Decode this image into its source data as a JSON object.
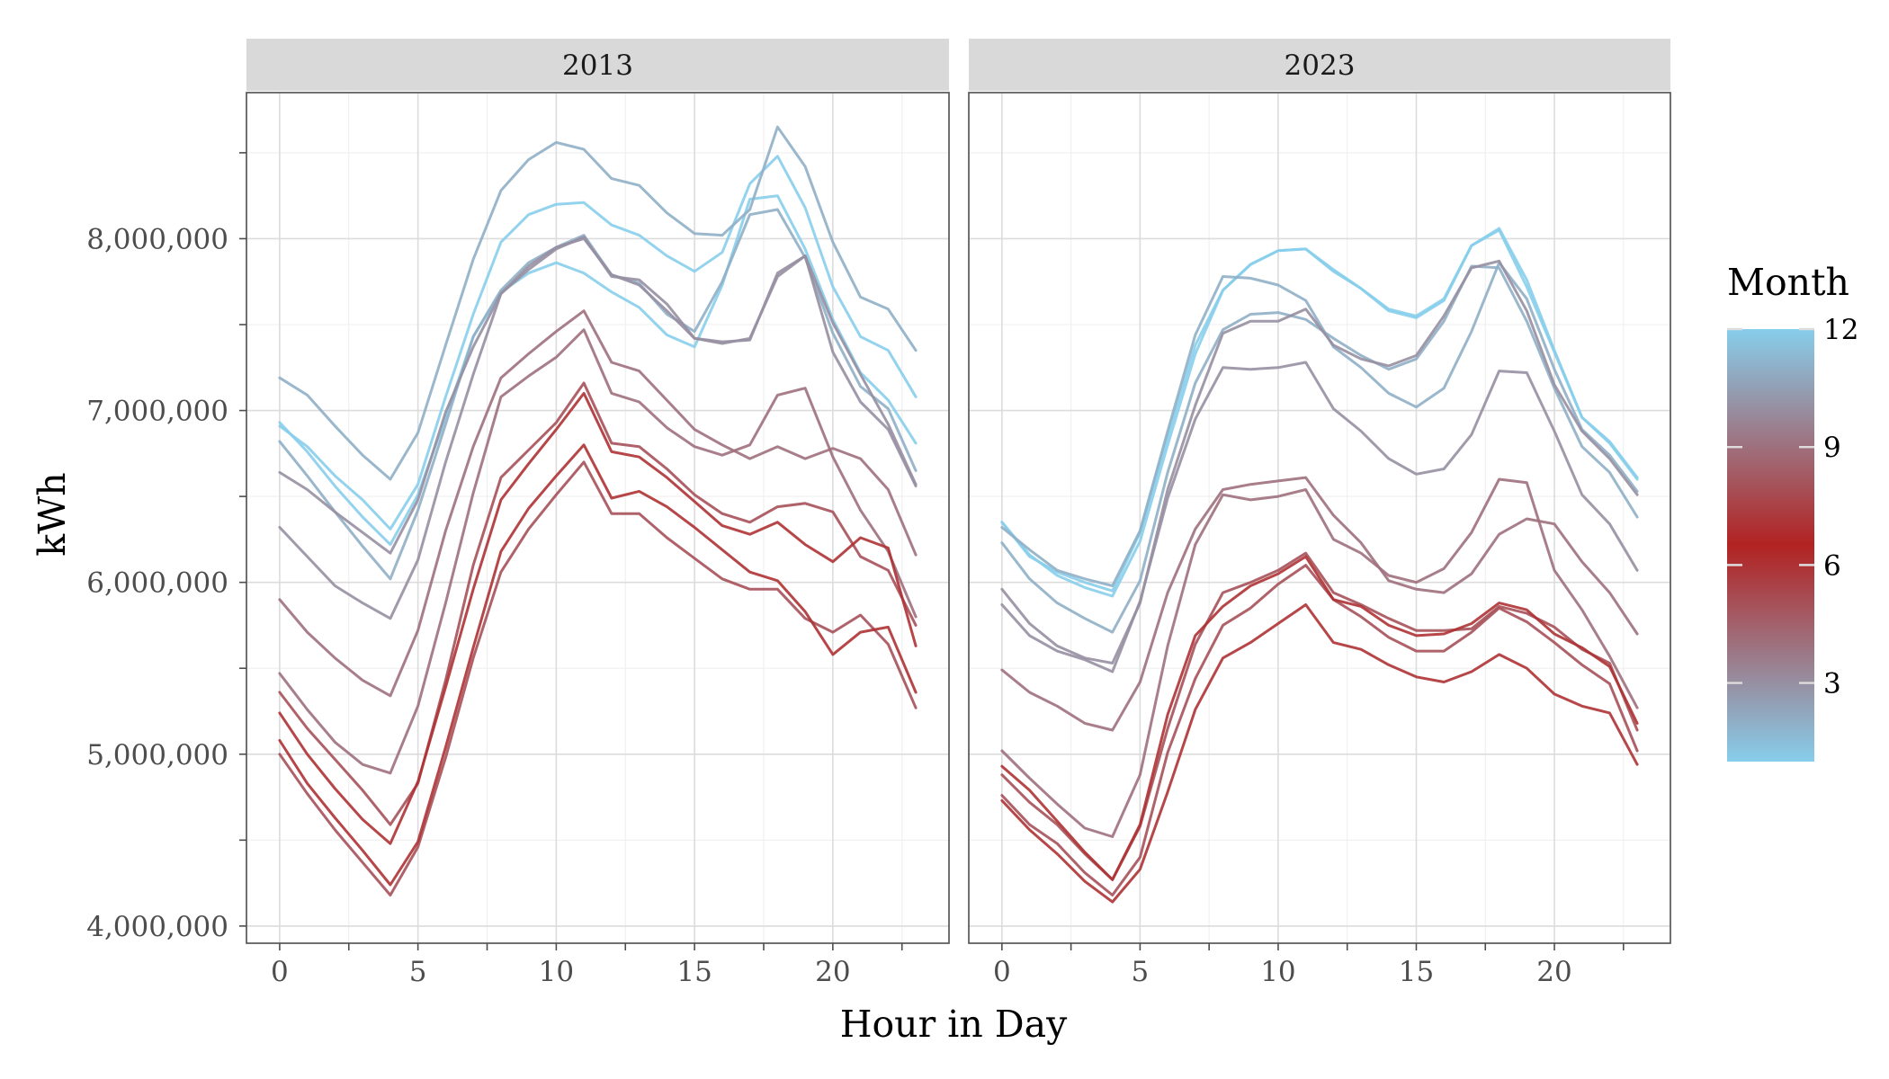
{
  "chart_data": {
    "type": "line",
    "xlabel": "Hour in Day",
    "ylabel": "kWh",
    "xlim": [
      -1.2,
      24.2
    ],
    "ylim": [
      3900000,
      8850000
    ],
    "x_ticks": [
      0,
      5,
      10,
      15,
      20
    ],
    "x_tick_labels": [
      "0",
      "5",
      "10",
      "15",
      "20"
    ],
    "y_ticks": [
      4000000,
      5000000,
      6000000,
      7000000,
      8000000
    ],
    "y_tick_labels": [
      "4,000,000",
      "5,000,000",
      "6,000,000",
      "7,000,000",
      "8,000,000"
    ],
    "grid": true,
    "legend": {
      "title": "Month",
      "placement": "right",
      "labels": [
        "3",
        "6",
        "9",
        "12"
      ],
      "breaks": [
        3,
        6,
        9,
        12
      ],
      "range": [
        1,
        12
      ],
      "colors": {
        "low": "#87CEEB",
        "mid": "#B22222",
        "high": "#87CEEB",
        "midpoint": 6.5
      }
    },
    "hours": [
      0,
      1,
      2,
      3,
      4,
      5,
      6,
      7,
      8,
      9,
      10,
      11,
      12,
      13,
      14,
      15,
      16,
      17,
      18,
      19,
      20,
      21,
      22,
      23
    ],
    "facets": [
      {
        "strip_label": "2013",
        "series": [
          {
            "month": 1,
            "values": [
              6930000,
              6760000,
              6560000,
              6380000,
              6220000,
              6510000,
              6960000,
              7430000,
              7690000,
              7800000,
              7860000,
              7800000,
              7690000,
              7600000,
              7440000,
              7370000,
              7730000,
              8230000,
              8250000,
              7940000,
              7530000,
              7220000,
              7060000,
              6810000
            ]
          },
          {
            "month": 2,
            "values": [
              6820000,
              6620000,
              6410000,
              6210000,
              6020000,
              6420000,
              6920000,
              7430000,
              7700000,
              7860000,
              7950000,
              8020000,
              7790000,
              7740000,
              7560000,
              7460000,
              7750000,
              8140000,
              8170000,
              7890000,
              7450000,
              7140000,
              7010000,
              6650000
            ]
          },
          {
            "month": 3,
            "values": [
              6320000,
              6150000,
              5980000,
              5880000,
              5790000,
              6130000,
              6700000,
              7210000,
              7680000,
              7840000,
              7950000,
              8000000,
              7790000,
              7730000,
              7580000,
              7420000,
              7390000,
              7420000,
              7780000,
              7900000,
              7340000,
              7050000,
              6890000,
              6560000
            ]
          },
          {
            "month": 4,
            "values": [
              5470000,
              5260000,
              5070000,
              4940000,
              4890000,
              5280000,
              5880000,
              6520000,
              7080000,
              7200000,
              7310000,
              7470000,
              7100000,
              7050000,
              6900000,
              6790000,
              6740000,
              6800000,
              7090000,
              7130000,
              6730000,
              6420000,
              6180000,
              5800000
            ]
          },
          {
            "month": 5,
            "values": [
              5360000,
              5150000,
              4970000,
              4790000,
              4590000,
              4830000,
              5430000,
              6100000,
              6610000,
              6770000,
              6930000,
              7160000,
              6810000,
              6790000,
              6660000,
              6510000,
              6400000,
              6350000,
              6440000,
              6460000,
              6410000,
              6150000,
              6070000,
              5750000
            ]
          },
          {
            "month": 6,
            "values": [
              5240000,
              5000000,
              4800000,
              4620000,
              4480000,
              4840000,
              5390000,
              5960000,
              6480000,
              6690000,
              6890000,
              7100000,
              6760000,
              6730000,
              6610000,
              6470000,
              6330000,
              6280000,
              6350000,
              6220000,
              6120000,
              6260000,
              6200000,
              5630000
            ]
          },
          {
            "month": 7,
            "values": [
              5080000,
              4830000,
              4630000,
              4440000,
              4240000,
              4490000,
              5040000,
              5620000,
              6180000,
              6430000,
              6620000,
              6800000,
              6490000,
              6530000,
              6440000,
              6320000,
              6190000,
              6060000,
              6010000,
              5830000,
              5580000,
              5710000,
              5740000,
              5360000
            ]
          },
          {
            "month": 8,
            "values": [
              5000000,
              4770000,
              4560000,
              4370000,
              4180000,
              4460000,
              4980000,
              5560000,
              6060000,
              6310000,
              6510000,
              6700000,
              6400000,
              6400000,
              6260000,
              6140000,
              6020000,
              5960000,
              5960000,
              5790000,
              5710000,
              5810000,
              5640000,
              5270000
            ]
          },
          {
            "month": 9,
            "values": [
              5900000,
              5710000,
              5560000,
              5430000,
              5340000,
              5720000,
              6300000,
              6790000,
              7190000,
              7330000,
              7460000,
              7580000,
              7280000,
              7230000,
              7060000,
              6890000,
              6800000,
              6720000,
              6790000,
              6720000,
              6780000,
              6720000,
              6540000,
              6160000
            ]
          },
          {
            "month": 10,
            "values": [
              6640000,
              6540000,
              6410000,
              6290000,
              6170000,
              6480000,
              6990000,
              7370000,
              7680000,
              7820000,
              7940000,
              8010000,
              7780000,
              7760000,
              7620000,
              7420000,
              7400000,
              7410000,
              7800000,
              7900000,
              7510000,
              7210000,
              6920000,
              6570000
            ]
          },
          {
            "month": 11,
            "values": [
              7190000,
              7090000,
              6910000,
              6740000,
              6600000,
              6870000,
              7380000,
              7880000,
              8280000,
              8460000,
              8560000,
              8520000,
              8350000,
              8310000,
              8150000,
              8030000,
              8020000,
              8170000,
              8650000,
              8420000,
              7980000,
              7660000,
              7590000,
              7350000
            ]
          },
          {
            "month": 12,
            "values": [
              6910000,
              6790000,
              6620000,
              6480000,
              6310000,
              6570000,
              7080000,
              7560000,
              7980000,
              8140000,
              8200000,
              8210000,
              8080000,
              8020000,
              7900000,
              7810000,
              7920000,
              8320000,
              8480000,
              8180000,
              7720000,
              7430000,
              7350000,
              7080000
            ]
          }
        ]
      },
      {
        "strip_label": "2023",
        "series": [
          {
            "month": 1,
            "values": [
              6350000,
              6160000,
              6040000,
              5970000,
              5920000,
              6240000,
              6800000,
              7330000,
              7700000,
              7850000,
              7930000,
              7940000,
              7820000,
              7710000,
              7580000,
              7540000,
              7640000,
              7960000,
              8060000,
              7760000,
              7350000,
              6960000,
              6820000,
              6610000
            ]
          },
          {
            "month": 2,
            "values": [
              6230000,
              6020000,
              5880000,
              5790000,
              5710000,
              6010000,
              6640000,
              7160000,
              7470000,
              7560000,
              7570000,
              7530000,
              7420000,
              7320000,
              7240000,
              7300000,
              7520000,
              7840000,
              7830000,
              7520000,
              7130000,
              6790000,
              6640000,
              6380000
            ]
          },
          {
            "month": 3,
            "values": [
              5960000,
              5760000,
              5630000,
              5560000,
              5530000,
              5880000,
              6540000,
              7030000,
              7450000,
              7520000,
              7520000,
              7590000,
              7380000,
              7300000,
              7260000,
              7320000,
              7550000,
              7830000,
              7870000,
              7580000,
              7150000,
              6880000,
              6720000,
              6510000
            ]
          },
          {
            "month": 4,
            "values": [
              5020000,
              4860000,
              4710000,
              4570000,
              4520000,
              4880000,
              5630000,
              6220000,
              6510000,
              6480000,
              6500000,
              6540000,
              6250000,
              6170000,
              6040000,
              6000000,
              6080000,
              6290000,
              6600000,
              6580000,
              6070000,
              5840000,
              5570000,
              5270000
            ]
          },
          {
            "month": 5,
            "values": [
              4880000,
              4720000,
              4590000,
              4420000,
              4270000,
              4580000,
              5150000,
              5640000,
              5940000,
              6000000,
              6070000,
              6170000,
              5940000,
              5870000,
              5790000,
              5720000,
              5720000,
              5730000,
              5860000,
              5820000,
              5740000,
              5610000,
              5530000,
              5140000
            ]
          },
          {
            "month": 6,
            "values": [
              4930000,
              4790000,
              4610000,
              4430000,
              4270000,
              4590000,
              5230000,
              5690000,
              5860000,
              5980000,
              6050000,
              6150000,
              5900000,
              5860000,
              5750000,
              5690000,
              5700000,
              5760000,
              5880000,
              5840000,
              5700000,
              5620000,
              5510000,
              5180000
            ]
          },
          {
            "month": 7,
            "values": [
              4730000,
              4560000,
              4420000,
              4260000,
              4140000,
              4330000,
              4780000,
              5260000,
              5560000,
              5650000,
              5760000,
              5870000,
              5650000,
              5610000,
              5520000,
              5450000,
              5420000,
              5480000,
              5580000,
              5500000,
              5350000,
              5280000,
              5240000,
              4940000
            ]
          },
          {
            "month": 8,
            "values": [
              4760000,
              4590000,
              4480000,
              4310000,
              4180000,
              4400000,
              5010000,
              5440000,
              5750000,
              5850000,
              5990000,
              6100000,
              5900000,
              5800000,
              5680000,
              5600000,
              5600000,
              5710000,
              5850000,
              5770000,
              5650000,
              5520000,
              5410000,
              5020000
            ]
          },
          {
            "month": 9,
            "values": [
              5490000,
              5360000,
              5280000,
              5180000,
              5140000,
              5420000,
              5940000,
              6310000,
              6540000,
              6570000,
              6590000,
              6610000,
              6390000,
              6230000,
              6010000,
              5960000,
              5940000,
              6050000,
              6280000,
              6370000,
              6340000,
              6120000,
              5940000,
              5700000
            ]
          },
          {
            "month": 10,
            "values": [
              5870000,
              5690000,
              5600000,
              5550000,
              5480000,
              5890000,
              6490000,
              6950000,
              7250000,
              7240000,
              7250000,
              7280000,
              7010000,
              6880000,
              6720000,
              6630000,
              6660000,
              6860000,
              7230000,
              7220000,
              6880000,
              6510000,
              6340000,
              6070000
            ]
          },
          {
            "month": 11,
            "values": [
              6320000,
              6190000,
              6070000,
              6020000,
              5980000,
              6300000,
              6880000,
              7440000,
              7780000,
              7770000,
              7730000,
              7640000,
              7370000,
              7250000,
              7100000,
              7020000,
              7130000,
              7460000,
              7860000,
              7650000,
              7240000,
              6890000,
              6740000,
              6530000
            ]
          },
          {
            "month": 12,
            "values": [
              6350000,
              6150000,
              6060000,
              6000000,
              5950000,
              6290000,
              6850000,
              7380000,
              7700000,
              7850000,
              7930000,
              7940000,
              7810000,
              7710000,
              7590000,
              7550000,
              7650000,
              7960000,
              8050000,
              7720000,
              7340000,
              6960000,
              6810000,
              6600000
            ]
          }
        ]
      }
    ]
  }
}
